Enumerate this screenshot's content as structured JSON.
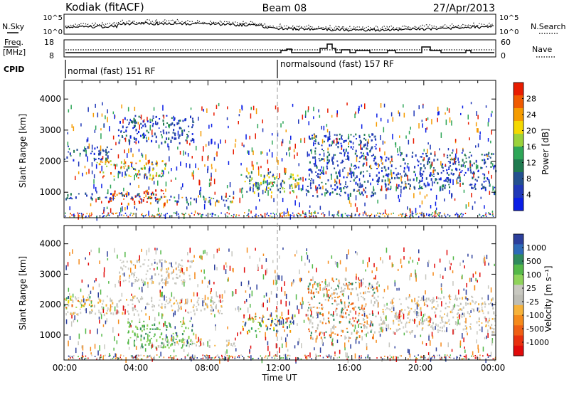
{
  "header": {
    "station": "Kodiak (fitACF)",
    "beam": "Beam 08",
    "date": "27/Apr/2013"
  },
  "panels": {
    "noise": {
      "left_label": "N.Sky",
      "right_label": "N.Search",
      "left_ticks": [
        "10^5",
        "10^0"
      ],
      "right_ticks": [
        "10^5",
        "10^0"
      ]
    },
    "freq": {
      "left_label_line1": "Freq.",
      "left_label_line2": "[MHz]",
      "left_ticks": [
        "18",
        "8"
      ],
      "right_label": "Nave",
      "right_ticks": [
        "60",
        "0"
      ]
    },
    "cpid": {
      "label": "CPID",
      "segments": [
        "normal (fast) 151 RF",
        "normalsound (fast) 157 RF"
      ]
    }
  },
  "colorbars": {
    "power": {
      "label": "Power [dB]",
      "ticks": [
        "28",
        "24",
        "20",
        "16",
        "12",
        "8",
        "4"
      ],
      "colors": [
        "#e81c00",
        "#f05a00",
        "#f59b00",
        "#f4d800",
        "#9bd23b",
        "#2ea657",
        "#1f7a4f",
        "#23508f",
        "#2038b8",
        "#0a1ee6"
      ]
    },
    "velocity": {
      "label": "Velocity [m s⁻¹]",
      "ticks": [
        "1000",
        "500",
        "100",
        "25",
        "-25",
        "-100",
        "-500",
        "-1000"
      ],
      "colors": [
        "#2c3f9c",
        "#2e6ab8",
        "#2f8a5d",
        "#54b848",
        "#8fd35a",
        "#c8c8c0",
        "#bdbdb5",
        "#f6b23a",
        "#f58a1b",
        "#ef5f14",
        "#e8300e",
        "#e10a0a"
      ]
    }
  },
  "chart_data": [
    {
      "type": "heatmap",
      "title": "Power",
      "ylabel": "Slant Range [km]",
      "xlabel": "Time UT",
      "ylim": [
        180,
        4600
      ],
      "yticks": [
        1000,
        2000,
        3000,
        4000
      ],
      "x": [
        "00:00",
        "04:00",
        "08:00",
        "12:00",
        "16:00",
        "20:00",
        "00:00"
      ],
      "colorbar": "Power [dB]",
      "scatter_regions": [
        {
          "hours": [
            0.0,
            2.6
          ],
          "km": [
            2050,
            2500
          ],
          "level": "blue"
        },
        {
          "hours": [
            1.8,
            5.6
          ],
          "km": [
            1450,
            2050
          ],
          "level": "orange"
        },
        {
          "hours": [
            2.4,
            5.6
          ],
          "km": [
            650,
            1100
          ],
          "level": "red"
        },
        {
          "hours": [
            5.0,
            9.5
          ],
          "km": [
            650,
            900
          ],
          "level": "mixed"
        },
        {
          "hours": [
            3.0,
            7.2
          ],
          "km": [
            2600,
            3500
          ],
          "level": "blue"
        },
        {
          "hours": [
            9.8,
            13.2
          ],
          "km": [
            1000,
            1700
          ],
          "level": "green"
        },
        {
          "hours": [
            13.5,
            17.4
          ],
          "km": [
            900,
            2900
          ],
          "level": "blue"
        },
        {
          "hours": [
            17.4,
            24.0
          ],
          "km": [
            1100,
            2300
          ],
          "level": "blue"
        },
        {
          "hours": [
            0.0,
            5.0
          ],
          "km": [
            800,
            1000
          ],
          "level": "blue"
        }
      ]
    },
    {
      "type": "heatmap",
      "title": "Velocity",
      "ylabel": "Slant Range [km]",
      "xlabel": "Time UT",
      "ylim": [
        180,
        4600
      ],
      "yticks": [
        1000,
        2000,
        3000,
        4000
      ],
      "x": [
        "00:00",
        "04:00",
        "08:00",
        "12:00",
        "16:00",
        "20:00",
        "00:00"
      ],
      "colorbar": "Velocity [m s⁻¹]",
      "scatter_regions": [
        {
          "hours": [
            0.0,
            8.8
          ],
          "km": [
            1700,
            2300
          ],
          "level": "gray"
        },
        {
          "hours": [
            0.0,
            1.6
          ],
          "km": [
            1900,
            2300
          ],
          "level": "orange"
        },
        {
          "hours": [
            3.5,
            7.2
          ],
          "km": [
            600,
            1500
          ],
          "level": "lightgreen"
        },
        {
          "hours": [
            4.8,
            9.5
          ],
          "km": [
            650,
            900
          ],
          "level": "gray"
        },
        {
          "hours": [
            3.0,
            7.2
          ],
          "km": [
            2700,
            3500
          ],
          "level": "gray"
        },
        {
          "hours": [
            9.8,
            12.8
          ],
          "km": [
            1100,
            1700
          ],
          "level": "orange"
        },
        {
          "hours": [
            13.5,
            17.4
          ],
          "km": [
            900,
            2900
          ],
          "level": "mixed"
        },
        {
          "hours": [
            17.4,
            24.0
          ],
          "km": [
            1100,
            2300
          ],
          "level": "gray"
        }
      ]
    }
  ]
}
